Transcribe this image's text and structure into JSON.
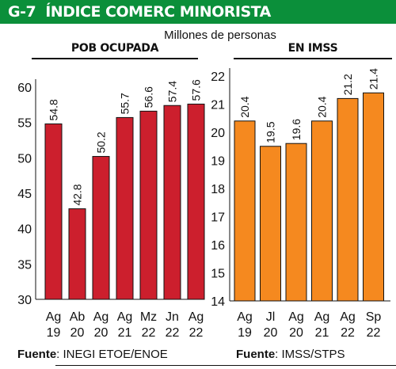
{
  "header": {
    "code": "G-7",
    "title": "ÍNDICE COMERC MINORISTA"
  },
  "subtitle": "Millones de personas",
  "chart_data": [
    {
      "type": "bar",
      "title": "POB OCUPADA",
      "categories": [
        [
          "Ag",
          "19"
        ],
        [
          "Ab",
          "20"
        ],
        [
          "Ag",
          "20"
        ],
        [
          "Ag",
          "21"
        ],
        [
          "Mz",
          "22"
        ],
        [
          "Jn",
          "22"
        ],
        [
          "Ag",
          "22"
        ]
      ],
      "values": [
        54.8,
        42.8,
        50.2,
        55.7,
        56.6,
        57.4,
        57.6
      ],
      "value_labels": [
        "54.8",
        "42.8",
        "50.2",
        "55.7",
        "56.6",
        "57.4",
        "57.6"
      ],
      "ylim": [
        30,
        60
      ],
      "yticks": [
        30,
        35,
        40,
        45,
        50,
        55,
        60
      ],
      "color": "#cc1f2d",
      "source_label": "Fuente",
      "source_text": ": INEGI ETOE/ENOE"
    },
    {
      "type": "bar",
      "title": "EN IMSS",
      "categories": [
        [
          "Ag",
          "19"
        ],
        [
          "Jl",
          "20"
        ],
        [
          "Ag",
          "20"
        ],
        [
          "Ag",
          "21"
        ],
        [
          "Ag",
          "22"
        ],
        [
          "Sp",
          "22"
        ]
      ],
      "values": [
        20.4,
        19.5,
        19.6,
        20.4,
        21.2,
        21.4
      ],
      "value_labels": [
        "20.4",
        "19.5",
        "19.6",
        "20.4",
        "21.2",
        "21.4"
      ],
      "ylim": [
        14,
        22
      ],
      "yticks": [
        14,
        15,
        16,
        17,
        18,
        19,
        20,
        21,
        22
      ],
      "color": "#f5891f",
      "source_label": "Fuente",
      "source_text": ": IMSS/STPS"
    }
  ]
}
